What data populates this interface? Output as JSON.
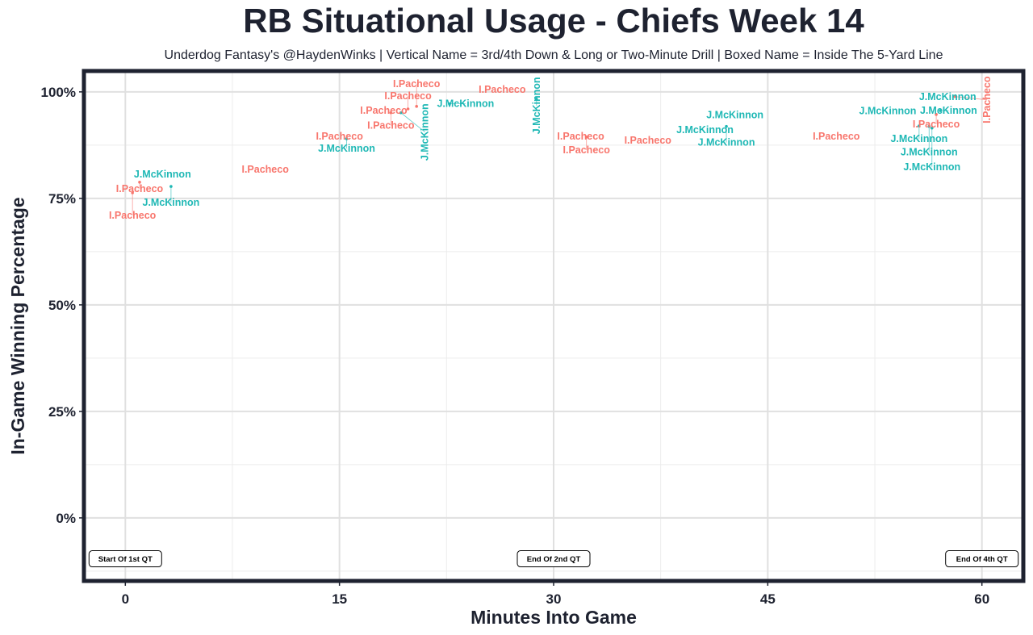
{
  "chart_data": {
    "type": "scatter",
    "title": "RB Situational Usage - Chiefs Week 14",
    "subtitle": "Underdog Fantasy's @HaydenWinks | Vertical Name = 3rd/4th Down & Long or Two-Minute Drill | Boxed Name = Inside The 5-Yard Line",
    "xlabel": "Minutes Into Game",
    "ylabel": "In-Game Winning Percentage",
    "xlim": [
      -2.9,
      62.9
    ],
    "ylim": [
      -14.8,
      104.9
    ],
    "x_ticks": [
      0,
      15,
      30,
      45,
      60
    ],
    "x_tick_labels": [
      "0",
      "15",
      "30",
      "45",
      "60"
    ],
    "y_ticks": [
      0,
      25,
      50,
      75,
      100
    ],
    "y_tick_labels": [
      "0%",
      "25%",
      "50%",
      "75%",
      "100%"
    ],
    "grid": true,
    "colors": {
      "I.Pacheco": "#f8766d",
      "J.McKinnon": "#1fb8b5"
    },
    "points": [
      {
        "label": "J.McKinnon",
        "x": 2.6,
        "y": 80.7,
        "vertical": false
      },
      {
        "label": "I.Pacheco",
        "x": 1.0,
        "y": 78.8,
        "vertical": false
      },
      {
        "label": "J.McKinnon",
        "x": 3.2,
        "y": 77.8,
        "vertical": false
      },
      {
        "label": "I.Pacheco",
        "x": 0.5,
        "y": 76.3,
        "vertical": false
      },
      {
        "label": "I.Pacheco",
        "x": 9.8,
        "y": 81.8,
        "vertical": false
      },
      {
        "label": "I.Pacheco",
        "x": 15.0,
        "y": 89.6,
        "vertical": false
      },
      {
        "label": "J.McKinnon",
        "x": 15.5,
        "y": 89.0,
        "vertical": false
      },
      {
        "label": "I.Pacheco",
        "x": 18.1,
        "y": 95.6,
        "vertical": false
      },
      {
        "label": "I.Pacheco",
        "x": 18.6,
        "y": 95.1,
        "vertical": false
      },
      {
        "label": "I.Pacheco",
        "x": 19.8,
        "y": 96.0,
        "vertical": false
      },
      {
        "label": "I.Pacheco",
        "x": 20.4,
        "y": 96.6,
        "vertical": false
      },
      {
        "label": "J.McKinnon",
        "x": 19.3,
        "y": 95.1,
        "vertical": true
      },
      {
        "label": "J.McKinnon",
        "x": 22.7,
        "y": 97.2,
        "vertical": false
      },
      {
        "label": "I.Pacheco",
        "x": 26.4,
        "y": 99.8,
        "vertical": false
      },
      {
        "label": "J.McKinnon",
        "x": 28.8,
        "y": 98.3,
        "vertical": true
      },
      {
        "label": "I.Pacheco",
        "x": 31.9,
        "y": 89.6,
        "vertical": false
      },
      {
        "label": "I.Pacheco",
        "x": 32.3,
        "y": 89.4,
        "vertical": false
      },
      {
        "label": "I.Pacheco",
        "x": 36.6,
        "y": 88.6,
        "vertical": false
      },
      {
        "label": "J.McKinnon",
        "x": 40.6,
        "y": 91.1,
        "vertical": false
      },
      {
        "label": "J.McKinnon",
        "x": 42.7,
        "y": 93.8,
        "vertical": false
      },
      {
        "label": "J.McKinnon",
        "x": 42.1,
        "y": 91.9,
        "vertical": false
      },
      {
        "label": "I.Pacheco",
        "x": 49.8,
        "y": 89.6,
        "vertical": false
      },
      {
        "label": "J.McKinnon",
        "x": 53.4,
        "y": 95.5,
        "vertical": false
      },
      {
        "label": "J.McKinnon",
        "x": 57.1,
        "y": 95.6,
        "vertical": false
      },
      {
        "label": "J.McKinnon",
        "x": 57.6,
        "y": 98.1,
        "vertical": false
      },
      {
        "label": "I.Pacheco",
        "x": 56.8,
        "y": 94.7,
        "vertical": false
      },
      {
        "label": "I.Pacheco",
        "x": 58.1,
        "y": 98.9,
        "vertical": true
      },
      {
        "label": "J.McKinnon",
        "x": 55.6,
        "y": 92.0,
        "vertical": false
      },
      {
        "label": "J.McKinnon",
        "x": 56.3,
        "y": 91.9,
        "vertical": false
      },
      {
        "label": "J.McKinnon",
        "x": 56.5,
        "y": 91.5,
        "vertical": false
      }
    ],
    "annotations": [
      {
        "text": "Start Of 1st QT",
        "x": 0,
        "y": -9.6
      },
      {
        "text": "End Of 2nd QT",
        "x": 30,
        "y": -9.6
      },
      {
        "text": "End Of 4th QT",
        "x": 60,
        "y": -9.6
      }
    ]
  }
}
